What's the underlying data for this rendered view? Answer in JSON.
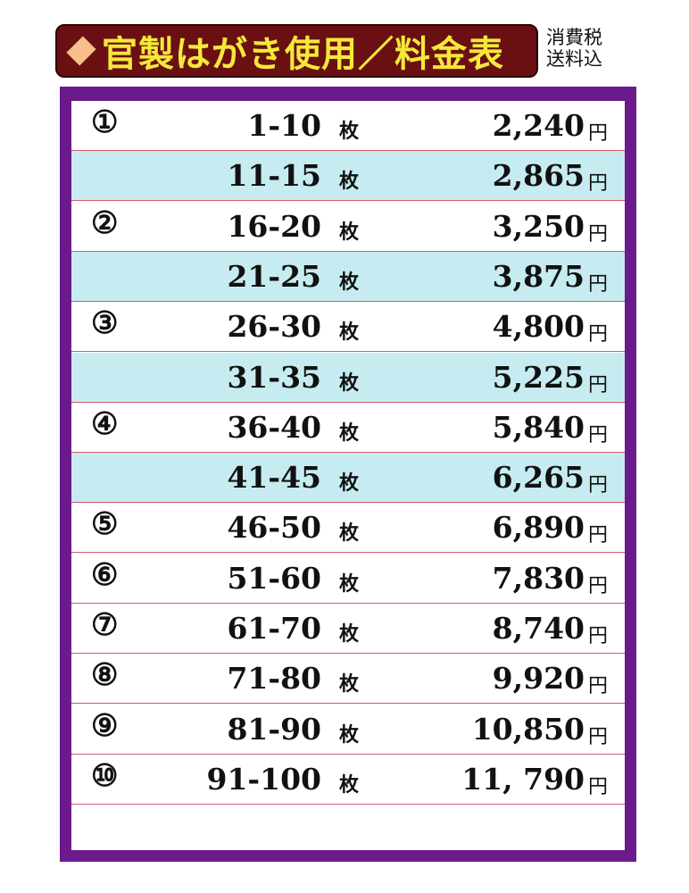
{
  "header": {
    "title": "官製はがき使用／料金表",
    "tax_note_line1": "消費税",
    "tax_note_line2": "送料込"
  },
  "colors": {
    "title_bg": "#6a1012",
    "title_text": "#f4e83a",
    "frame": "#6b1a8c",
    "row_alt": "#c6ecf1",
    "row_line": "#d45a6a"
  },
  "unit_label": "枚",
  "currency_label": "円",
  "rows": [
    {
      "marker": "①",
      "range": "1-10",
      "price": "2,240",
      "shaded": false
    },
    {
      "marker": "",
      "range": "11-15",
      "price": "2,865",
      "shaded": true
    },
    {
      "marker": "②",
      "range": "16-20",
      "price": "3,250",
      "shaded": false
    },
    {
      "marker": "",
      "range": "21-25",
      "price": "3,875",
      "shaded": true
    },
    {
      "marker": "③",
      "range": "26-30",
      "price": "4,800",
      "shaded": false
    },
    {
      "marker": "",
      "range": "31-35",
      "price": "5,225",
      "shaded": true
    },
    {
      "marker": "④",
      "range": "36-40",
      "price": "5,840",
      "shaded": false
    },
    {
      "marker": "",
      "range": "41-45",
      "price": "6,265",
      "shaded": true
    },
    {
      "marker": "⑤",
      "range": "46-50",
      "price": "6,890",
      "shaded": false
    },
    {
      "marker": "⑥",
      "range": "51-60",
      "price": "7,830",
      "shaded": false
    },
    {
      "marker": "⑦",
      "range": "61-70",
      "price": "8,740",
      "shaded": false
    },
    {
      "marker": "⑧",
      "range": "71-80",
      "price": "9,920",
      "shaded": false
    },
    {
      "marker": "⑨",
      "range": "81-90",
      "price": "10,850",
      "shaded": false
    },
    {
      "marker": "⑩",
      "range": "91-100",
      "price": "11, 790",
      "shaded": false
    }
  ]
}
